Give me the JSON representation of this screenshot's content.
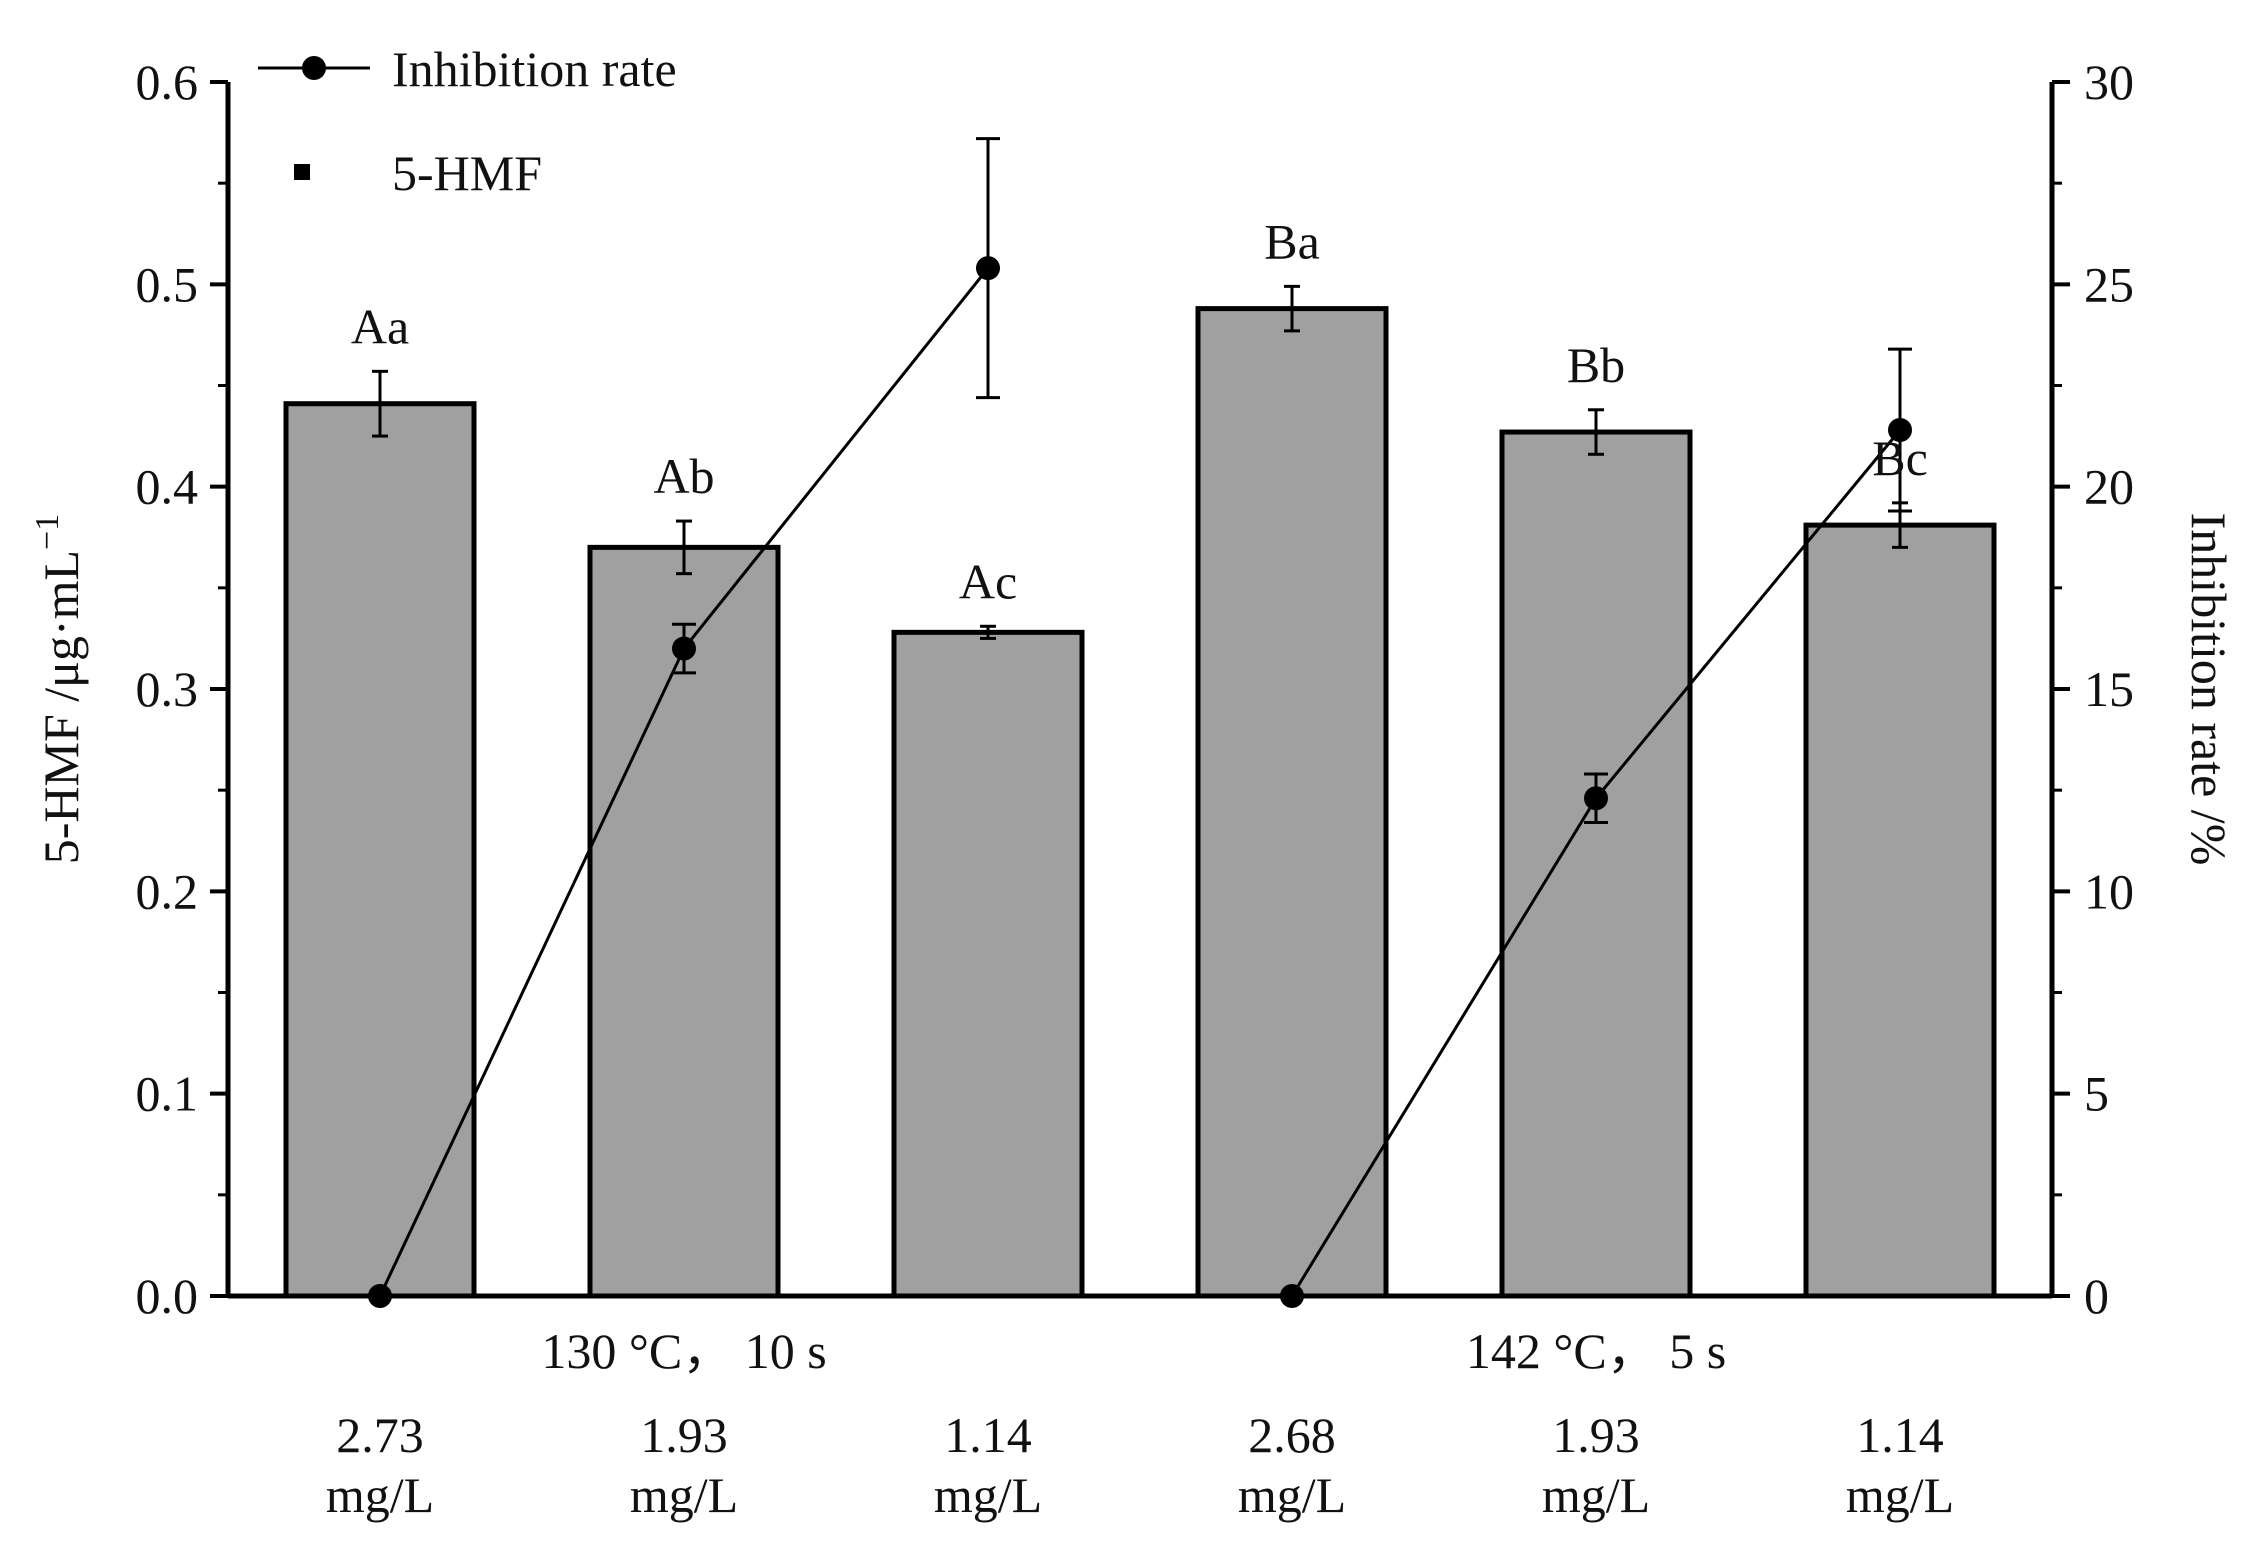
{
  "chart_data": {
    "type": "bar+line",
    "left_axis": {
      "label_main": "5-HMF /μg·mL",
      "label_sup": "−1",
      "ylim": [
        0,
        0.6
      ],
      "ticks": [
        "0.0",
        "0.1",
        "0.2",
        "0.3",
        "0.4",
        "0.5",
        "0.6"
      ]
    },
    "right_axis": {
      "label": "Inhibition rate /%",
      "ylim": [
        0,
        30
      ],
      "ticks": [
        "0",
        "5",
        "10",
        "15",
        "20",
        "25",
        "30"
      ]
    },
    "legend": {
      "position": "top-left",
      "items": [
        {
          "label": "Inhibition rate",
          "kind": "line-marker"
        },
        {
          "label": "5-HMF",
          "kind": "square"
        }
      ]
    },
    "categories": [
      {
        "value": "2.73",
        "unit": "mg/L"
      },
      {
        "value": "1.93",
        "unit": "mg/L"
      },
      {
        "value": "1.14",
        "unit": "mg/L"
      },
      {
        "value": "2.68",
        "unit": "mg/L"
      },
      {
        "value": "1.93",
        "unit": "mg/L"
      },
      {
        "value": "1.14",
        "unit": "mg/L"
      }
    ],
    "groups": [
      {
        "label": "130 °C，  10 s",
        "categories": [
          0,
          1,
          2
        ]
      },
      {
        "label": "142 °C，  5 s",
        "categories": [
          3,
          4,
          5
        ]
      }
    ],
    "bars": {
      "name": "5-HMF",
      "values": [
        0.441,
        0.37,
        0.328,
        0.488,
        0.427,
        0.381
      ],
      "errors": [
        0.016,
        0.013,
        0.003,
        0.011,
        0.011,
        0.011
      ],
      "labels": [
        "Aa",
        "Ab",
        "Ac",
        "Ba",
        "Bb",
        "Bc"
      ],
      "fill": "#a0a0a0",
      "stroke": "#000000"
    },
    "lines": [
      {
        "name": "Inhibition rate",
        "categories": [
          0,
          1,
          2
        ],
        "values": [
          0,
          16.0,
          25.4
        ],
        "errors": [
          0,
          0.6,
          3.2
        ]
      },
      {
        "name": "Inhibition rate",
        "categories": [
          3,
          4,
          5
        ],
        "values": [
          0,
          12.3,
          21.4
        ],
        "errors": [
          0,
          0.6,
          2.0
        ]
      }
    ]
  }
}
